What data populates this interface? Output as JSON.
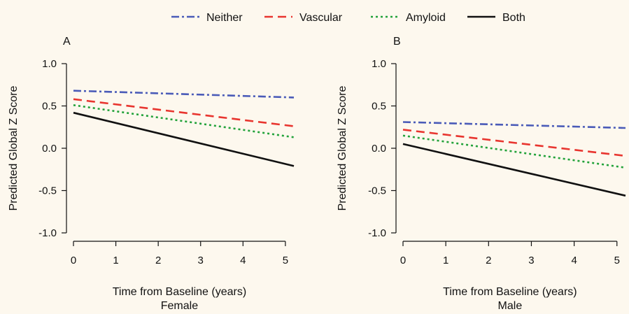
{
  "legend": [
    {
      "name": "Neither",
      "color": "#4a5bb8",
      "dash": "dashdot"
    },
    {
      "name": "Vascular",
      "color": "#e8352f",
      "dash": "dash"
    },
    {
      "name": "Amyloid",
      "color": "#22a23a",
      "dash": "dot"
    },
    {
      "name": "Both",
      "color": "#111111",
      "dash": "solid"
    }
  ],
  "chart_data": [
    {
      "type": "line",
      "panel_label": "A",
      "xlabel": "Time from Baseline (years)",
      "sublabel": "Female",
      "ylabel": "Predicted Global Z Score",
      "xlim": [
        0,
        5.2
      ],
      "ylim": [
        -1.0,
        1.0
      ],
      "xticks": [
        0,
        1,
        2,
        3,
        4,
        5
      ],
      "yticks": [
        1.0,
        0.5,
        0.0,
        -0.5,
        -1.0
      ],
      "ytick_labels": [
        "1.0",
        "0.5",
        "0.0",
        "-0.5",
        "-1.0"
      ],
      "series": [
        {
          "name": "Neither",
          "x": [
            0,
            5.2
          ],
          "y": [
            0.68,
            0.6
          ]
        },
        {
          "name": "Vascular",
          "x": [
            0,
            5.2
          ],
          "y": [
            0.58,
            0.26
          ]
        },
        {
          "name": "Amyloid",
          "x": [
            0,
            5.2
          ],
          "y": [
            0.51,
            0.13
          ]
        },
        {
          "name": "Both",
          "x": [
            0,
            5.2
          ],
          "y": [
            0.42,
            -0.21
          ]
        }
      ]
    },
    {
      "type": "line",
      "panel_label": "B",
      "xlabel": "Time from Baseline (years)",
      "sublabel": "Male",
      "ylabel": "Predicted Global Z Score",
      "xlim": [
        0,
        5.2
      ],
      "ylim": [
        -1.0,
        1.0
      ],
      "xticks": [
        0,
        1,
        2,
        3,
        4,
        5
      ],
      "yticks": [
        1.0,
        0.5,
        0.0,
        -0.5,
        -1.0
      ],
      "ytick_labels": [
        "1.0",
        "0.5",
        "0.0",
        "-0.5",
        "-1.0"
      ],
      "series": [
        {
          "name": "Neither",
          "x": [
            0,
            5.2
          ],
          "y": [
            0.31,
            0.24
          ]
        },
        {
          "name": "Vascular",
          "x": [
            0,
            5.2
          ],
          "y": [
            0.22,
            -0.09
          ]
        },
        {
          "name": "Amyloid",
          "x": [
            0,
            5.2
          ],
          "y": [
            0.15,
            -0.23
          ]
        },
        {
          "name": "Both",
          "x": [
            0,
            5.2
          ],
          "y": [
            0.05,
            -0.56
          ]
        }
      ]
    }
  ]
}
